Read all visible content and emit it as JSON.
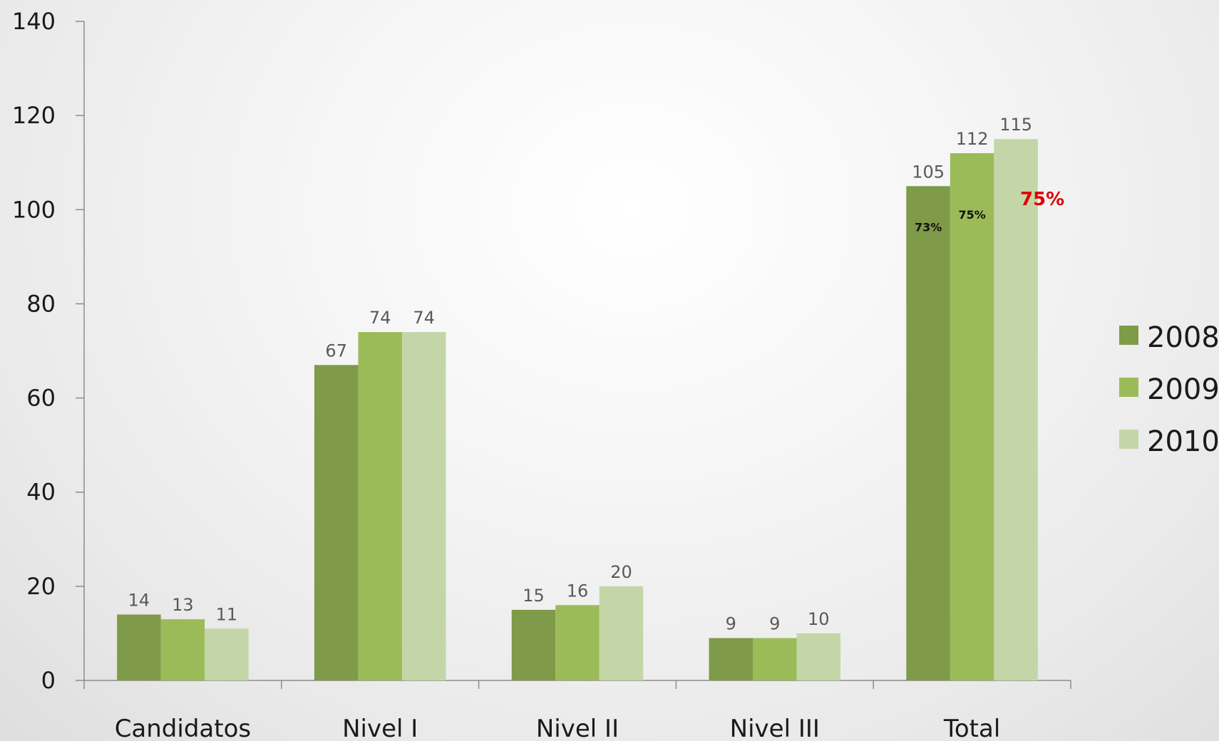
{
  "chart_data": {
    "type": "bar",
    "categories": [
      "Candidatos",
      "Nivel I",
      "Nivel II",
      "Nivel III",
      "Total"
    ],
    "series": [
      {
        "name": "2008",
        "color": "#7f9a48",
        "values": [
          14,
          67,
          15,
          9,
          105
        ]
      },
      {
        "name": "2009",
        "color": "#9bbb59",
        "values": [
          13,
          74,
          16,
          9,
          112
        ]
      },
      {
        "name": "2010",
        "color": "#c4d6a7",
        "values": [
          11,
          74,
          20,
          10,
          115
        ]
      }
    ],
    "ylim": [
      0,
      140
    ],
    "yticks": [
      0,
      20,
      40,
      60,
      80,
      100,
      120,
      140
    ],
    "legend_position": "right",
    "grid": false,
    "annotations": [
      {
        "text": "73%",
        "category": "Total",
        "series": "2008",
        "style": "small-black"
      },
      {
        "text": "75%",
        "category": "Total",
        "series": "2009",
        "style": "small-black"
      },
      {
        "text": "75%",
        "category": "Total",
        "series": "2010",
        "style": "large-red"
      }
    ]
  }
}
